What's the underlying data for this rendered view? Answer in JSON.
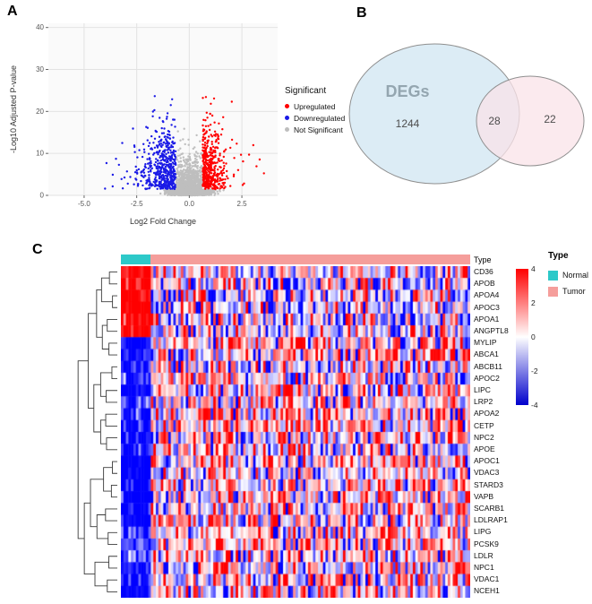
{
  "panels": {
    "a": "A",
    "b": "B",
    "c": "C"
  },
  "chart_data": [
    {
      "type": "scatter",
      "subtype": "volcano",
      "title": "",
      "xlabel": "Log2 Fold Change",
      "ylabel": "-Log10 Adjusted P-value",
      "xlim": [
        -6.7,
        4.2
      ],
      "ylim": [
        0,
        41
      ],
      "x_ticks": [
        "-5.0",
        "-2.5",
        "0.0",
        "2.5"
      ],
      "y_ticks": [
        0,
        10,
        20,
        30,
        40
      ],
      "grid": true,
      "legend": {
        "title": "Significant",
        "position": "right"
      },
      "series": [
        {
          "name": "Upregulated",
          "color": "#FF0000",
          "n_points": 430
        },
        {
          "name": "Downregulated",
          "color": "#1A1AE6",
          "n_points": 520
        },
        {
          "name": "Not Significant",
          "color": "#BEBEBE",
          "n_points": 1700
        }
      ],
      "generation": {
        "seed": 11,
        "fc_threshold": 0.62,
        "p_threshold": 1.4
      }
    },
    {
      "type": "venn",
      "sets": [
        {
          "label": "DEGs",
          "unique_count": "1244",
          "fill": "#D8EAF4",
          "label_color": "#94A6B0"
        },
        {
          "label": "",
          "unique_count": "22",
          "fill": "#FAE3E8",
          "label_color": "#94A6B0"
        }
      ],
      "intersection_count": "28",
      "outline_color": "#8F8F8F"
    },
    {
      "type": "heatmap",
      "genes": [
        "CD36",
        "APOB",
        "APOA4",
        "APOC3",
        "APOA1",
        "ANGPTL8",
        "MYLIP",
        "ABCA1",
        "ABCB11",
        "APOC2",
        "LIPC",
        "LRP2",
        "APOA2",
        "CETP",
        "NPC2",
        "APOE",
        "APOC1",
        "VDAC3",
        "STARD3",
        "VAPB",
        "SCARB1",
        "LDLRAP1",
        "LIPG",
        "PCSK9",
        "LDLR",
        "NPC1",
        "VDAC1",
        "NCEH1"
      ],
      "annotation": {
        "title": "Type",
        "groups": [
          {
            "label": "Normal",
            "color": "#2DC9C9",
            "n_samples": 12
          },
          {
            "label": "Tumor",
            "color": "#F59E9B",
            "n_samples": 128
          }
        ]
      },
      "colorbar": {
        "max": 4,
        "min": -4,
        "ticks": [
          4,
          2,
          0,
          -2,
          -4
        ],
        "top_color": "#FF0000",
        "mid_color": "#FFFFFF",
        "bottom_color": "#0000CC"
      },
      "generation": {
        "seed": 23,
        "positive_normal_rows": 6,
        "tumor_sd": 1.9
      }
    }
  ]
}
